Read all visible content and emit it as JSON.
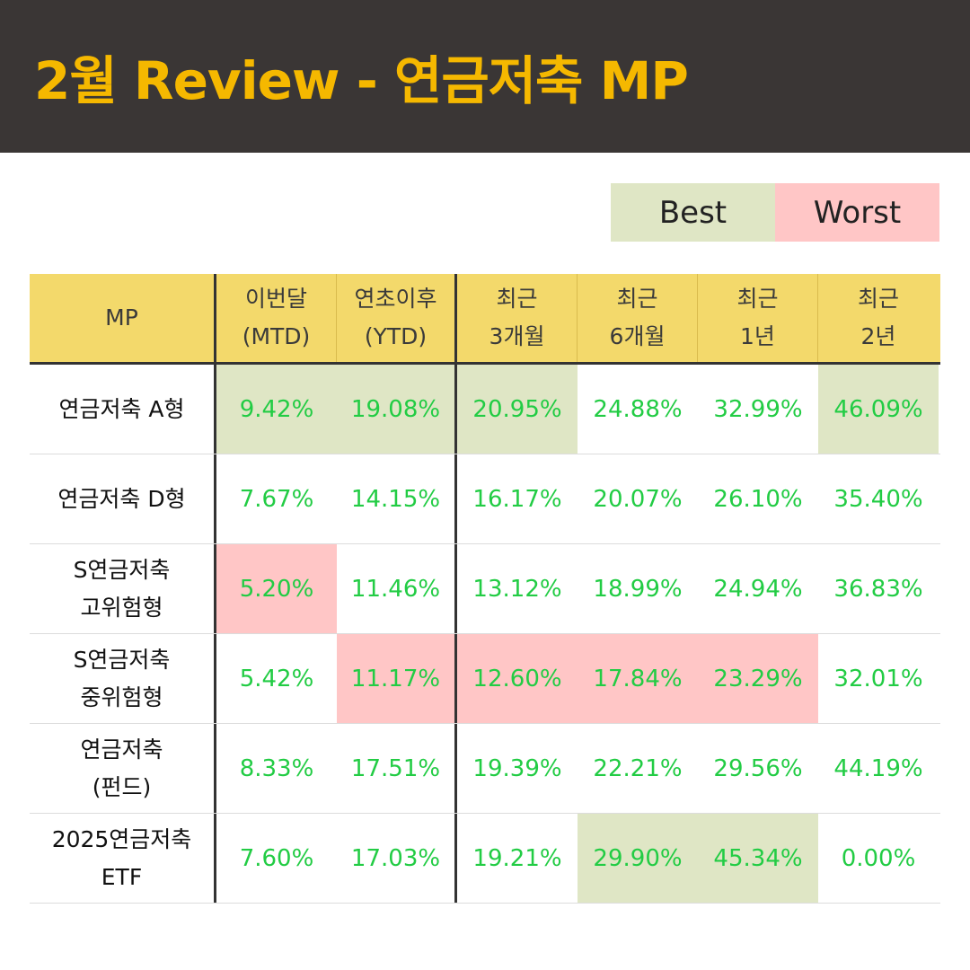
{
  "title": "2월 Review - 연금저축 MP",
  "legend": {
    "best": "Best",
    "worst": "Worst"
  },
  "colors": {
    "header_bg": "#3a3635",
    "title": "#f5b800",
    "table_head": "#f3d96b",
    "best": "#dfe6c5",
    "worst": "#ffc6c6",
    "value": "#22cc44"
  },
  "table": {
    "headers": [
      "MP",
      "이번달\n(MTD)",
      "연초이후\n(YTD)",
      "최근\n3개월",
      "최근\n6개월",
      "최근\n1년",
      "최근\n2년"
    ],
    "rows": [
      {
        "name": "연금저축 A형",
        "values": [
          "9.42%",
          "19.08%",
          "20.95%",
          "24.88%",
          "32.99%",
          "46.09%"
        ],
        "highlight": [
          "best",
          "best",
          "best",
          "",
          "",
          "best"
        ]
      },
      {
        "name": "연금저축 D형",
        "values": [
          "7.67%",
          "14.15%",
          "16.17%",
          "20.07%",
          "26.10%",
          "35.40%"
        ],
        "highlight": [
          "",
          "",
          "",
          "",
          "",
          ""
        ]
      },
      {
        "name": "S연금저축\n고위험형",
        "values": [
          "5.20%",
          "11.46%",
          "13.12%",
          "18.99%",
          "24.94%",
          "36.83%"
        ],
        "highlight": [
          "worst",
          "",
          "",
          "",
          "",
          ""
        ]
      },
      {
        "name": "S연금저축\n중위험형",
        "values": [
          "5.42%",
          "11.17%",
          "12.60%",
          "17.84%",
          "23.29%",
          "32.01%"
        ],
        "highlight": [
          "",
          "worst",
          "worst",
          "worst",
          "worst",
          ""
        ]
      },
      {
        "name": "연금저축\n(펀드)",
        "values": [
          "8.33%",
          "17.51%",
          "19.39%",
          "22.21%",
          "29.56%",
          "44.19%"
        ],
        "highlight": [
          "",
          "",
          "",
          "",
          "",
          ""
        ]
      },
      {
        "name": "2025연금저축\nETF",
        "values": [
          "7.60%",
          "17.03%",
          "19.21%",
          "29.90%",
          "45.34%",
          "0.00%"
        ],
        "highlight": [
          "",
          "",
          "",
          "best",
          "best",
          ""
        ]
      }
    ]
  }
}
